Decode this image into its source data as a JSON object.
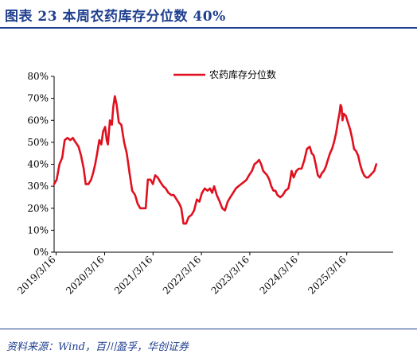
{
  "header": {
    "title": "图表 23   本周农药库存分位数 40%"
  },
  "footer": {
    "source": "资料来源：Wind，百川盈孚，华创证券"
  },
  "colors": {
    "line": "#e0101e",
    "axis": "#000000",
    "title": "#1f3f8f"
  },
  "chart_data": {
    "type": "line",
    "title": "",
    "xlabel": "",
    "ylabel": "",
    "grid": false,
    "legend_position": "top-center",
    "ylim": [
      0,
      80
    ],
    "y_ticks": [
      "0%",
      "10%",
      "20%",
      "30%",
      "40%",
      "50%",
      "60%",
      "70%",
      "80%"
    ],
    "xlim": [
      "2019-03-01",
      "2026-03-01"
    ],
    "x_ticks": [
      {
        "date": "2019-03-16",
        "label": "2019/3/16"
      },
      {
        "date": "2020-03-16",
        "label": "2020/3/16"
      },
      {
        "date": "2021-03-16",
        "label": "2021/3/16"
      },
      {
        "date": "2022-03-16",
        "label": "2022/3/16"
      },
      {
        "date": "2023-03-16",
        "label": "2023/3/16"
      },
      {
        "date": "2024-03-16",
        "label": "2024/3/16"
      },
      {
        "date": "2025-03-16",
        "label": "2025/3/16"
      }
    ],
    "series": [
      {
        "name": "农药库存分位数",
        "color": "#e0101e",
        "points": [
          [
            "2019-03-01",
            31
          ],
          [
            "2019-03-20",
            33
          ],
          [
            "2019-04-10",
            40
          ],
          [
            "2019-05-01",
            43
          ],
          [
            "2019-05-20",
            51
          ],
          [
            "2019-06-10",
            52
          ],
          [
            "2019-07-01",
            51
          ],
          [
            "2019-07-20",
            52
          ],
          [
            "2019-08-10",
            50
          ],
          [
            "2019-09-01",
            48
          ],
          [
            "2019-09-20",
            44
          ],
          [
            "2019-10-10",
            38
          ],
          [
            "2019-10-25",
            31
          ],
          [
            "2019-11-15",
            31
          ],
          [
            "2019-12-05",
            33
          ],
          [
            "2019-12-20",
            36
          ],
          [
            "2020-01-05",
            40
          ],
          [
            "2020-01-20",
            45
          ],
          [
            "2020-02-05",
            51
          ],
          [
            "2020-02-20",
            49
          ],
          [
            "2020-03-05",
            55
          ],
          [
            "2020-03-20",
            57
          ],
          [
            "2020-04-01",
            51
          ],
          [
            "2020-04-10",
            49
          ],
          [
            "2020-04-25",
            60
          ],
          [
            "2020-05-10",
            58
          ],
          [
            "2020-05-20",
            66
          ],
          [
            "2020-06-01",
            71
          ],
          [
            "2020-06-15",
            67
          ],
          [
            "2020-07-01",
            59
          ],
          [
            "2020-07-20",
            58
          ],
          [
            "2020-08-10",
            50
          ],
          [
            "2020-08-30",
            45
          ],
          [
            "2020-09-20",
            36
          ],
          [
            "2020-10-10",
            28
          ],
          [
            "2020-11-01",
            26
          ],
          [
            "2020-11-20",
            22
          ],
          [
            "2020-12-10",
            20
          ],
          [
            "2021-01-01",
            20
          ],
          [
            "2021-01-20",
            20
          ],
          [
            "2021-02-05",
            33
          ],
          [
            "2021-02-25",
            33
          ],
          [
            "2021-03-15",
            31
          ],
          [
            "2021-04-01",
            35
          ],
          [
            "2021-04-20",
            34
          ],
          [
            "2021-05-10",
            32
          ],
          [
            "2021-06-01",
            30
          ],
          [
            "2021-06-20",
            29
          ],
          [
            "2021-07-10",
            27
          ],
          [
            "2021-08-01",
            26
          ],
          [
            "2021-08-20",
            26
          ],
          [
            "2021-09-10",
            24
          ],
          [
            "2021-10-01",
            22
          ],
          [
            "2021-10-15",
            20
          ],
          [
            "2021-11-01",
            13
          ],
          [
            "2021-11-20",
            13
          ],
          [
            "2021-12-10",
            16
          ],
          [
            "2022-01-01",
            17
          ],
          [
            "2022-01-20",
            19
          ],
          [
            "2022-02-10",
            24
          ],
          [
            "2022-03-01",
            23
          ],
          [
            "2022-03-20",
            27
          ],
          [
            "2022-04-10",
            29
          ],
          [
            "2022-05-01",
            28
          ],
          [
            "2022-05-20",
            29
          ],
          [
            "2022-06-05",
            27
          ],
          [
            "2022-06-20",
            30
          ],
          [
            "2022-07-10",
            26
          ],
          [
            "2022-08-01",
            23
          ],
          [
            "2022-08-20",
            20
          ],
          [
            "2022-09-10",
            19
          ],
          [
            "2022-09-30",
            23
          ],
          [
            "2022-10-20",
            25
          ],
          [
            "2022-11-10",
            27
          ],
          [
            "2022-12-01",
            29
          ],
          [
            "2022-12-20",
            30
          ],
          [
            "2023-01-10",
            31
          ],
          [
            "2023-02-01",
            32
          ],
          [
            "2023-02-20",
            33
          ],
          [
            "2023-03-10",
            35
          ],
          [
            "2023-04-01",
            37
          ],
          [
            "2023-04-20",
            40
          ],
          [
            "2023-05-10",
            41
          ],
          [
            "2023-05-25",
            42
          ],
          [
            "2023-06-10",
            40
          ],
          [
            "2023-06-25",
            37
          ],
          [
            "2023-07-10",
            36
          ],
          [
            "2023-07-25",
            35
          ],
          [
            "2023-08-10",
            33
          ],
          [
            "2023-08-25",
            30
          ],
          [
            "2023-09-10",
            28
          ],
          [
            "2023-09-25",
            28
          ],
          [
            "2023-10-10",
            26
          ],
          [
            "2023-11-01",
            25
          ],
          [
            "2023-11-20",
            26
          ],
          [
            "2023-12-10",
            28
          ],
          [
            "2024-01-01",
            29
          ],
          [
            "2024-01-15",
            33
          ],
          [
            "2024-01-25",
            37
          ],
          [
            "2024-02-10",
            34
          ],
          [
            "2024-03-01",
            37
          ],
          [
            "2024-03-20",
            38
          ],
          [
            "2024-04-10",
            38
          ],
          [
            "2024-05-01",
            42
          ],
          [
            "2024-05-20",
            47
          ],
          [
            "2024-06-10",
            48
          ],
          [
            "2024-06-25",
            45
          ],
          [
            "2024-07-10",
            44
          ],
          [
            "2024-07-25",
            40
          ],
          [
            "2024-08-10",
            35
          ],
          [
            "2024-08-25",
            34
          ],
          [
            "2024-09-10",
            36
          ],
          [
            "2024-09-25",
            37
          ],
          [
            "2024-10-10",
            39
          ],
          [
            "2024-10-25",
            42
          ],
          [
            "2024-11-10",
            45
          ],
          [
            "2024-11-25",
            47
          ],
          [
            "2024-12-10",
            50
          ],
          [
            "2024-12-25",
            54
          ],
          [
            "2025-01-10",
            60
          ],
          [
            "2025-01-20",
            63
          ],
          [
            "2025-01-28",
            67
          ],
          [
            "2025-02-05",
            66
          ],
          [
            "2025-02-12",
            60
          ],
          [
            "2025-02-22",
            63
          ],
          [
            "2025-03-10",
            62
          ],
          [
            "2025-03-25",
            59
          ],
          [
            "2025-04-10",
            56
          ],
          [
            "2025-04-25",
            52
          ],
          [
            "2025-05-10",
            47
          ],
          [
            "2025-05-25",
            46
          ],
          [
            "2025-06-10",
            44
          ],
          [
            "2025-06-25",
            40
          ],
          [
            "2025-07-10",
            37
          ],
          [
            "2025-07-25",
            35
          ],
          [
            "2025-08-10",
            34
          ],
          [
            "2025-08-25",
            34
          ],
          [
            "2025-09-10",
            35
          ],
          [
            "2025-09-25",
            36
          ],
          [
            "2025-10-10",
            37
          ],
          [
            "2025-10-25",
            40
          ]
        ]
      }
    ]
  }
}
